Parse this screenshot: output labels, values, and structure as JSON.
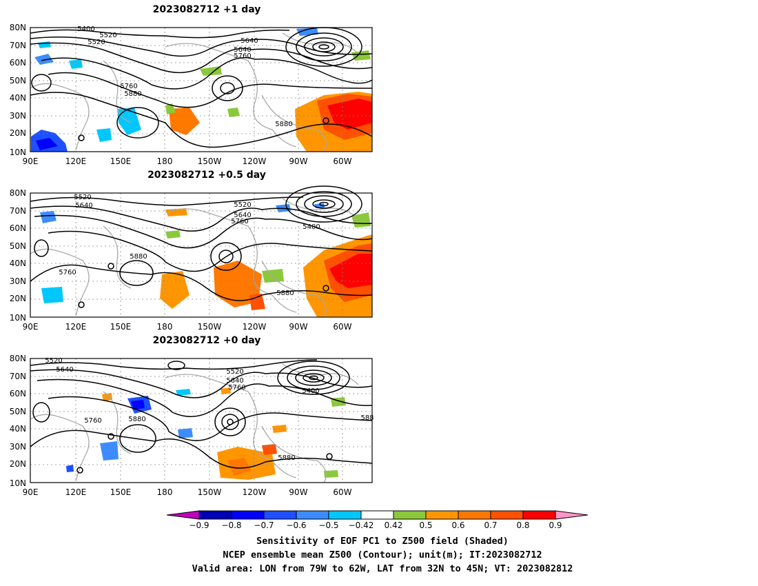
{
  "panels": [
    {
      "title": "2023082712  +1 day",
      "contour_labels": [
        "5400",
        "5520",
        "5640",
        "5520",
        "5640",
        "5760",
        "5760",
        "5880",
        "5880"
      ]
    },
    {
      "title": "2023082712  +0.5 day",
      "contour_labels": [
        "5520",
        "5640",
        "5520",
        "5640",
        "5760",
        "5400",
        "5880",
        "5760",
        "5880"
      ]
    },
    {
      "title": "2023082712  +0 day",
      "contour_labels": [
        "5520",
        "5640",
        "5520",
        "5640",
        "5760",
        "5400",
        "5760",
        "5880",
        "5880",
        "588"
      ]
    }
  ],
  "lat_ticks": [
    "80N",
    "70N",
    "60N",
    "50N",
    "40N",
    "30N",
    "20N",
    "10N"
  ],
  "lon_ticks": [
    "90E",
    "120E",
    "150E",
    "180",
    "150W",
    "120W",
    "90W",
    "60W"
  ],
  "colorbar": {
    "colors": [
      "#c000c0",
      "#0000b4",
      "#0000ff",
      "#1e50ff",
      "#3c8cff",
      "#00c8ff",
      "#ffffff",
      "#8cc83c",
      "#ff9600",
      "#ff7800",
      "#ff5000",
      "#ff0000",
      "#ff96c8"
    ],
    "labels": [
      "−0.9",
      "−0.8",
      "−0.7",
      "−0.6",
      "−0.5",
      "−0.42",
      "0.42",
      "0.5",
      "0.6",
      "0.7",
      "0.8",
      "0.9"
    ]
  },
  "caption": {
    "line1": "Sensitivity of EOF PC1 to Z500 field (Shaded)",
    "line2": "NCEP ensemble mean Z500 (Contour); unit(m); IT:2023082712",
    "line3": "Valid area: LON from 79W to 62W, LAT from 32N to 45N; VT: 2023082812"
  }
}
